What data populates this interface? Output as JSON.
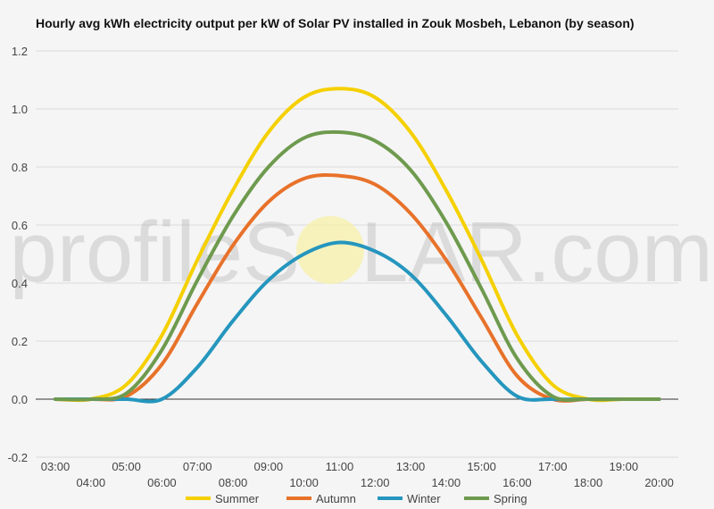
{
  "watermark": {
    "left": "profileS",
    "right": "LAR.com"
  },
  "chart_data": {
    "type": "line",
    "title": "Hourly avg kWh electricity output per kW of Solar PV installed in Zouk Mosbeh, Lebanon (by season)",
    "xlabel": "",
    "ylabel": "",
    "ylim": [
      -0.2,
      1.2
    ],
    "yticks": [
      "1.2",
      "1.0",
      "0.8",
      "0.6",
      "0.4",
      "0.2",
      "0.0",
      "-0.2"
    ],
    "ytick_values": [
      1.2,
      1.0,
      0.8,
      0.6,
      0.4,
      0.2,
      0.0,
      -0.2
    ],
    "x": [
      "03:00",
      "04:00",
      "05:00",
      "06:00",
      "07:00",
      "08:00",
      "09:00",
      "10:00",
      "11:00",
      "12:00",
      "13:00",
      "14:00",
      "15:00",
      "16:00",
      "17:00",
      "18:00",
      "19:00",
      "20:00"
    ],
    "grid": true,
    "legend_position": "bottom",
    "series": [
      {
        "name": "Summer",
        "color": "#f5d000",
        "values": [
          0.0,
          0.0,
          0.05,
          0.22,
          0.48,
          0.72,
          0.92,
          1.04,
          1.07,
          1.04,
          0.92,
          0.72,
          0.48,
          0.22,
          0.05,
          0.0,
          0.0,
          0.0
        ]
      },
      {
        "name": "Autumn",
        "color": "#e8722a",
        "values": [
          0.0,
          0.0,
          0.01,
          0.12,
          0.33,
          0.53,
          0.68,
          0.76,
          0.77,
          0.74,
          0.64,
          0.48,
          0.28,
          0.08,
          0.0,
          0.0,
          0.0,
          0.0
        ]
      },
      {
        "name": "Winter",
        "color": "#2596be",
        "values": [
          0.0,
          0.0,
          0.0,
          0.0,
          0.11,
          0.27,
          0.41,
          0.5,
          0.54,
          0.51,
          0.43,
          0.29,
          0.13,
          0.01,
          0.0,
          0.0,
          0.0,
          0.0
        ]
      },
      {
        "name": "Spring",
        "color": "#6e9a4e",
        "values": [
          0.0,
          0.0,
          0.02,
          0.17,
          0.41,
          0.63,
          0.8,
          0.9,
          0.92,
          0.89,
          0.79,
          0.61,
          0.38,
          0.14,
          0.01,
          0.0,
          0.0,
          0.0
        ]
      }
    ]
  }
}
